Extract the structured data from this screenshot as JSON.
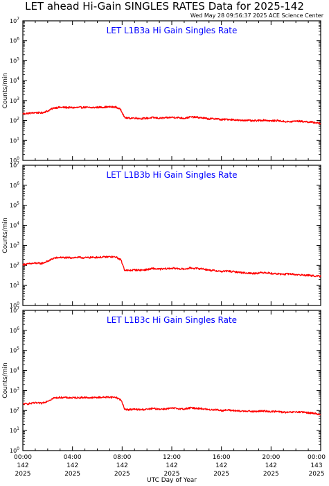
{
  "header": {
    "title": "LET ahead Hi-Gain SINGLES RATES Data for 2025-142",
    "timestamp": "Wed May 28 09:56:37 2025 ACE Science Center"
  },
  "x_axis": {
    "label": "UTC Day of Year",
    "ticks": [
      {
        "hour": 0,
        "time": "00:00",
        "day": "142",
        "year": "2025"
      },
      {
        "hour": 4,
        "time": "04:00",
        "day": "142",
        "year": "2025"
      },
      {
        "hour": 8,
        "time": "08:00",
        "day": "142",
        "year": "2025"
      },
      {
        "hour": 12,
        "time": "12:00",
        "day": "142",
        "year": "2025"
      },
      {
        "hour": 16,
        "time": "16:00",
        "day": "142",
        "year": "2025"
      },
      {
        "hour": 20,
        "time": "20:00",
        "day": "142",
        "year": "2025"
      },
      {
        "hour": 24,
        "time": "00:00",
        "day": "143",
        "year": "2025"
      }
    ]
  },
  "colors": {
    "series": "#ff0000",
    "panel_title": "#0000ff",
    "axis": "#000000"
  },
  "chart_data": [
    {
      "type": "line",
      "title": "LET L1B3a Hi Gain Singles Rate",
      "ylabel": "Counts/min",
      "yscale": "log",
      "ylim": [
        1,
        10000000
      ],
      "xlim": [
        0,
        24
      ],
      "xlabel": "UTC Day of Year",
      "series": [
        {
          "x": [
            0,
            0.5,
            1,
            1.5,
            2,
            2.5,
            3,
            3.5,
            4,
            4.5,
            5,
            5.5,
            6,
            6.5,
            7,
            7.5,
            7.9,
            8.2,
            8.5,
            9,
            9.5,
            10,
            10.5,
            11,
            11.5,
            12,
            12.5,
            13,
            13.5,
            14,
            14.5,
            15,
            15.5,
            16,
            16.5,
            17,
            17.5,
            18,
            18.5,
            19,
            19.5,
            20,
            20.5,
            21,
            21.5,
            22,
            22.5,
            23,
            23.5,
            24
          ],
          "y": [
            220,
            230,
            250,
            240,
            300,
            430,
            460,
            450,
            440,
            450,
            460,
            440,
            460,
            470,
            480,
            470,
            350,
            140,
            130,
            135,
            125,
            130,
            140,
            130,
            135,
            145,
            140,
            130,
            150,
            145,
            135,
            120,
            125,
            110,
            115,
            110,
            100,
            105,
            95,
            100,
            105,
            95,
            100,
            90,
            85,
            95,
            90,
            85,
            80,
            70
          ]
        }
      ]
    },
    {
      "type": "line",
      "title": "LET L1B3b Hi Gain Singles Rate",
      "ylabel": "Counts/min",
      "yscale": "log",
      "ylim": [
        1,
        10000000
      ],
      "xlim": [
        0,
        24
      ],
      "xlabel": "UTC Day of Year",
      "series": [
        {
          "x": [
            0,
            0.5,
            1,
            1.5,
            2,
            2.5,
            3,
            3.5,
            4,
            4.5,
            5,
            5.5,
            6,
            6.5,
            7,
            7.5,
            7.9,
            8.2,
            8.5,
            9,
            9.5,
            10,
            10.5,
            11,
            11.5,
            12,
            12.5,
            13,
            13.5,
            14,
            14.5,
            15,
            15.5,
            16,
            16.5,
            17,
            17.5,
            18,
            18.5,
            19,
            19.5,
            20,
            20.5,
            21,
            21.5,
            22,
            22.5,
            23,
            23.5,
            24
          ],
          "y": [
            110,
            120,
            130,
            125,
            160,
            230,
            250,
            240,
            245,
            250,
            240,
            250,
            255,
            260,
            270,
            260,
            190,
            60,
            55,
            60,
            58,
            62,
            70,
            65,
            68,
            72,
            70,
            65,
            75,
            70,
            68,
            58,
            55,
            50,
            52,
            48,
            45,
            42,
            40,
            42,
            45,
            40,
            38,
            36,
            38,
            35,
            33,
            32,
            30,
            28
          ]
        }
      ]
    },
    {
      "type": "line",
      "title": "LET L1B3c Hi Gain Singles Rate",
      "ylabel": "Counts/min",
      "yscale": "log",
      "ylim": [
        1,
        10000000
      ],
      "xlim": [
        0,
        24
      ],
      "xlabel": "UTC Day of Year",
      "series": [
        {
          "x": [
            0,
            0.5,
            1,
            1.5,
            2,
            2.5,
            3,
            3.5,
            4,
            4.5,
            5,
            5.5,
            6,
            6.5,
            7,
            7.5,
            7.9,
            8.2,
            8.5,
            9,
            9.5,
            10,
            10.5,
            11,
            11.5,
            12,
            12.5,
            13,
            13.5,
            14,
            14.5,
            15,
            15.5,
            16,
            16.5,
            17,
            17.5,
            18,
            18.5,
            19,
            19.5,
            20,
            20.5,
            21,
            21.5,
            22,
            22.5,
            23,
            23.5,
            24
          ],
          "y": [
            210,
            220,
            240,
            230,
            300,
            420,
            450,
            440,
            430,
            440,
            450,
            430,
            450,
            460,
            470,
            455,
            340,
            120,
            110,
            115,
            110,
            115,
            125,
            118,
            120,
            130,
            125,
            118,
            135,
            130,
            122,
            110,
            112,
            100,
            105,
            100,
            92,
            96,
            88,
            92,
            95,
            88,
            90,
            82,
            80,
            85,
            82,
            78,
            72,
            62
          ]
        }
      ]
    }
  ]
}
